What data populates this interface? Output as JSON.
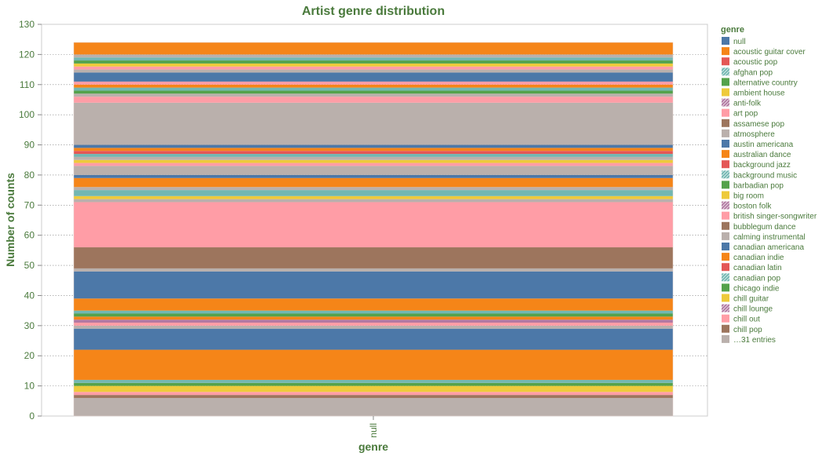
{
  "chart_data": {
    "type": "bar",
    "stacked": true,
    "title": "Artist genre distribution",
    "xlabel": "genre",
    "ylabel": "Number of counts",
    "categories": [
      "null"
    ],
    "ylim": [
      0,
      130
    ],
    "y_ticks": [
      0,
      10,
      20,
      30,
      40,
      50,
      60,
      70,
      80,
      90,
      100,
      110,
      120,
      130
    ],
    "grid": true,
    "legend_title": "genre",
    "legend_position": "right",
    "legend_entries": [
      {
        "label": "null",
        "color": "#4c78a8",
        "pattern": "solid"
      },
      {
        "label": "acoustic guitar cover",
        "color": "#f58518",
        "pattern": "solid"
      },
      {
        "label": "acoustic pop",
        "color": "#e45756",
        "pattern": "solid"
      },
      {
        "label": "afghan pop",
        "color": "#72b7b2",
        "pattern": "hatch"
      },
      {
        "label": "alternative country",
        "color": "#54a24b",
        "pattern": "solid"
      },
      {
        "label": "ambient house",
        "color": "#eeca3b",
        "pattern": "solid"
      },
      {
        "label": "anti-folk",
        "color": "#b279a2",
        "pattern": "hatch"
      },
      {
        "label": "art pop",
        "color": "#ff9da6",
        "pattern": "solid"
      },
      {
        "label": "assamese pop",
        "color": "#9d755d",
        "pattern": "solid"
      },
      {
        "label": "atmosphere",
        "color": "#bab0ac",
        "pattern": "solid"
      },
      {
        "label": "austin americana",
        "color": "#4c78a8",
        "pattern": "solid"
      },
      {
        "label": "australian dance",
        "color": "#f58518",
        "pattern": "solid"
      },
      {
        "label": "background jazz",
        "color": "#e45756",
        "pattern": "solid"
      },
      {
        "label": "background music",
        "color": "#72b7b2",
        "pattern": "hatch"
      },
      {
        "label": "barbadian pop",
        "color": "#54a24b",
        "pattern": "solid"
      },
      {
        "label": "big room",
        "color": "#eeca3b",
        "pattern": "solid"
      },
      {
        "label": "boston folk",
        "color": "#b279a2",
        "pattern": "hatch"
      },
      {
        "label": "british singer-songwriter",
        "color": "#ff9da6",
        "pattern": "solid"
      },
      {
        "label": "bubblegum dance",
        "color": "#9d755d",
        "pattern": "solid"
      },
      {
        "label": "calming instrumental",
        "color": "#bab0ac",
        "pattern": "solid"
      },
      {
        "label": "canadian americana",
        "color": "#4c78a8",
        "pattern": "solid"
      },
      {
        "label": "canadian indie",
        "color": "#f58518",
        "pattern": "solid"
      },
      {
        "label": "canadian latin",
        "color": "#e45756",
        "pattern": "solid"
      },
      {
        "label": "canadian pop",
        "color": "#72b7b2",
        "pattern": "hatch"
      },
      {
        "label": "chicago indie",
        "color": "#54a24b",
        "pattern": "solid"
      },
      {
        "label": "chill guitar",
        "color": "#eeca3b",
        "pattern": "solid"
      },
      {
        "label": "chill lounge",
        "color": "#b279a2",
        "pattern": "hatch"
      },
      {
        "label": "chill out",
        "color": "#ff9da6",
        "pattern": "solid"
      },
      {
        "label": "chill pop",
        "color": "#9d755d",
        "pattern": "solid"
      },
      {
        "label": "…31 entries",
        "color": "#bab0ac",
        "pattern": "solid"
      }
    ],
    "series": [
      {
        "value": 6,
        "color": "#bab0ac"
      },
      {
        "value": 1,
        "color": "#9d755d"
      },
      {
        "value": 1,
        "color": "#ff9da6"
      },
      {
        "value": 1,
        "color": "#eeca3b"
      },
      {
        "value": 1,
        "color": "#eeca3b"
      },
      {
        "value": 1,
        "color": "#54a24b"
      },
      {
        "value": 1,
        "color": "#72b7b2"
      },
      {
        "value": 10,
        "color": "#f58518"
      },
      {
        "value": 7,
        "color": "#4c78a8"
      },
      {
        "value": 1,
        "color": "#bab0ac"
      },
      {
        "value": 1,
        "color": "#ff9da6"
      },
      {
        "value": 1,
        "color": "#b279a2"
      },
      {
        "value": 1,
        "color": "#f58518"
      },
      {
        "value": 1,
        "color": "#54a24b"
      },
      {
        "value": 1,
        "color": "#72b7b2"
      },
      {
        "value": 4,
        "color": "#f58518"
      },
      {
        "value": 9,
        "color": "#4c78a8"
      },
      {
        "value": 1,
        "color": "#bab0ac"
      },
      {
        "value": 7,
        "color": "#9d755d"
      },
      {
        "value": 15,
        "color": "#ff9da6"
      },
      {
        "value": 1,
        "color": "#bab0ac"
      },
      {
        "value": 1,
        "color": "#eeca3b"
      },
      {
        "value": 2,
        "color": "#72b7b2"
      },
      {
        "value": 1,
        "color": "#bab0ac"
      },
      {
        "value": 3,
        "color": "#f58518"
      },
      {
        "value": 1,
        "color": "#4c78a8"
      },
      {
        "value": 3,
        "color": "#bab0ac"
      },
      {
        "value": 1,
        "color": "#ff9da6"
      },
      {
        "value": 1,
        "color": "#eeca3b"
      },
      {
        "value": 1,
        "color": "#bab0ac"
      },
      {
        "value": 1,
        "color": "#72b7b2"
      },
      {
        "value": 1,
        "color": "#e45756"
      },
      {
        "value": 1,
        "color": "#f58518"
      },
      {
        "value": 1,
        "color": "#4c78a8"
      },
      {
        "value": 14,
        "color": "#bab0ac"
      },
      {
        "value": 2,
        "color": "#ff9da6"
      },
      {
        "value": 1,
        "color": "#bab0ac"
      },
      {
        "value": 1,
        "color": "#54a24b"
      },
      {
        "value": 1,
        "color": "#72b7b2"
      },
      {
        "value": 1,
        "color": "#f58518"
      },
      {
        "value": 1,
        "color": "#ff9da6"
      },
      {
        "value": 3,
        "color": "#4c78a8"
      },
      {
        "value": 1,
        "color": "#bab0ac"
      },
      {
        "value": 1,
        "color": "#ff9da6"
      },
      {
        "value": 1,
        "color": "#eeca3b"
      },
      {
        "value": 1,
        "color": "#54a24b"
      },
      {
        "value": 1,
        "color": "#72b7b2"
      },
      {
        "value": 1,
        "color": "#bab0ac"
      },
      {
        "value": 4,
        "color": "#f58518"
      }
    ]
  }
}
